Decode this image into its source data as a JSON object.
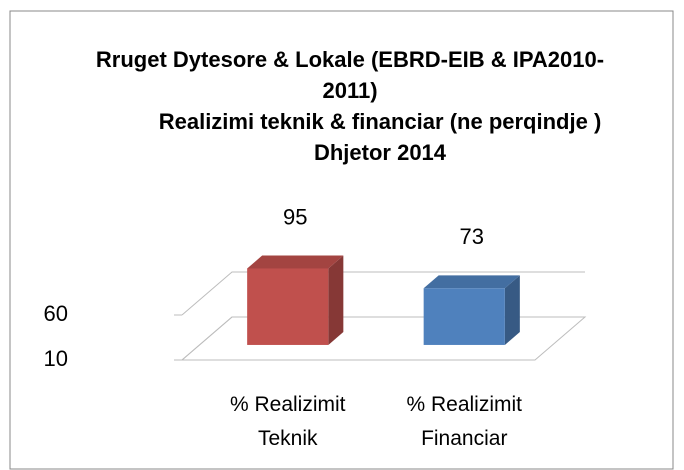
{
  "chart_data": {
    "type": "bar3d",
    "title": "Rruget Dytesore & Lokale  (EBRD-EIB & IPA2010-2011)",
    "subtitle": "Realizimi  teknik & financiar  (ne perqindje )  Dhjetor 2014",
    "categories": [
      "% Realizimit Teknik",
      "% Realizimit Financiar"
    ],
    "values": [
      95,
      73
    ],
    "colors": [
      "#c0504d",
      "#4f81bd"
    ],
    "ylim": [
      10,
      110
    ],
    "yticks": [
      10,
      60
    ],
    "grid": true
  }
}
